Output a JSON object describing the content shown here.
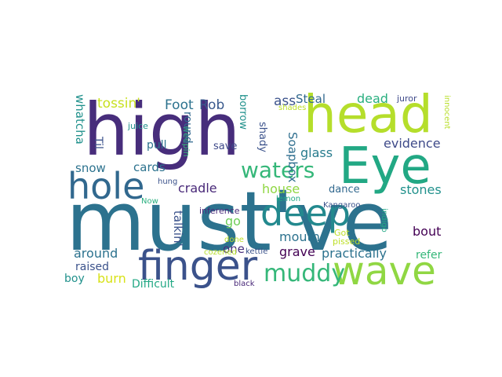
{
  "words": [
    {
      "text": "must've",
      "color": "#2c728e",
      "vertical": false
    },
    {
      "text": "high",
      "color": "#472d7b",
      "vertical": false
    },
    {
      "text": "head",
      "color": "#b5de2b",
      "vertical": false
    },
    {
      "text": "Eye",
      "color": "#22a884",
      "vertical": false
    },
    {
      "text": "finger",
      "color": "#3b528b",
      "vertical": false
    },
    {
      "text": "wave",
      "color": "#90d743",
      "vertical": false
    },
    {
      "text": "hole",
      "color": "#31688e",
      "vertical": false
    },
    {
      "text": "deep",
      "color": "#23898e",
      "vertical": false
    },
    {
      "text": "waters",
      "color": "#35b779",
      "vertical": false
    },
    {
      "text": "muddy",
      "color": "#35b779",
      "vertical": false
    },
    {
      "text": "tossin'",
      "color": "#c8e020",
      "vertical": false
    },
    {
      "text": "Foot",
      "color": "#2c728e",
      "vertical": false
    },
    {
      "text": "Rob",
      "color": "#38588c",
      "vertical": false
    },
    {
      "text": "ass",
      "color": "#3b528b",
      "vertical": false
    },
    {
      "text": "Steal",
      "color": "#31688e",
      "vertical": false
    },
    {
      "text": "dead",
      "color": "#29af7f",
      "vertical": false
    },
    {
      "text": "juror",
      "color": "#3e4989",
      "vertical": false
    },
    {
      "text": "innocent",
      "color": "#b8de29",
      "vertical": true
    },
    {
      "text": "whatcha",
      "color": "#21918c",
      "vertical": true
    },
    {
      "text": "Til",
      "color": "#3b528b",
      "vertical": true
    },
    {
      "text": "juice",
      "color": "#21918c",
      "vertical": false
    },
    {
      "text": "weepin",
      "color": "#35b779",
      "vertical": true
    },
    {
      "text": "round",
      "color": "#31688e",
      "vertical": true
    },
    {
      "text": "borrow",
      "color": "#21918c",
      "vertical": true
    },
    {
      "text": "shady",
      "color": "#3b528b",
      "vertical": true
    },
    {
      "text": "shades",
      "color": "#bddf26",
      "vertical": false
    },
    {
      "text": "evidence",
      "color": "#3e4a89",
      "vertical": false
    },
    {
      "text": "Soapbox",
      "color": "#2e6e8e",
      "vertical": true
    },
    {
      "text": "glass",
      "color": "#287c8e",
      "vertical": false
    },
    {
      "text": "pull",
      "color": "#2c728e",
      "vertical": false
    },
    {
      "text": "save",
      "color": "#3e4989",
      "vertical": false
    },
    {
      "text": "snow",
      "color": "#2c728e",
      "vertical": false
    },
    {
      "text": "cards",
      "color": "#2c728e",
      "vertical": false
    },
    {
      "text": "hung",
      "color": "#3b528b",
      "vertical": false
    },
    {
      "text": "talkin'",
      "color": "#3b528b",
      "vertical": true
    },
    {
      "text": "cradle",
      "color": "#482878",
      "vertical": false
    },
    {
      "text": "house",
      "color": "#90d743",
      "vertical": false
    },
    {
      "text": "dance",
      "color": "#31688e",
      "vertical": false
    },
    {
      "text": "stones",
      "color": "#21918c",
      "vertical": false
    },
    {
      "text": "Now",
      "color": "#29af7f",
      "vertical": false
    },
    {
      "text": "inference",
      "color": "#482878",
      "vertical": false
    },
    {
      "text": "go",
      "color": "#6ece58",
      "vertical": false
    },
    {
      "text": "lemon",
      "color": "#22a884",
      "vertical": false
    },
    {
      "text": "Kangaroo",
      "color": "#3b528b",
      "vertical": false
    },
    {
      "text": "bout",
      "color": "#440154",
      "vertical": false
    },
    {
      "text": "mouth",
      "color": "#2c728e",
      "vertical": false
    },
    {
      "text": "indigo",
      "color": "#22a884",
      "vertical": true
    },
    {
      "text": "Got",
      "color": "#bddf26",
      "vertical": false
    },
    {
      "text": "pissed",
      "color": "#bddf26",
      "vertical": false
    },
    {
      "text": "one",
      "color": "#472d7b",
      "vertical": false
    },
    {
      "text": "done",
      "color": "#bddf26",
      "vertical": false
    },
    {
      "text": "kettle",
      "color": "#3b528b",
      "vertical": false
    },
    {
      "text": "grave",
      "color": "#440154",
      "vertical": false
    },
    {
      "text": "practically",
      "color": "#2c728e",
      "vertical": false
    },
    {
      "text": "refer",
      "color": "#35b779",
      "vertical": false
    },
    {
      "text": "around",
      "color": "#2c728e",
      "vertical": false
    },
    {
      "text": "raised",
      "color": "#3b528b",
      "vertical": false
    },
    {
      "text": "cozened",
      "color": "#b5de2b",
      "vertical": false
    },
    {
      "text": "burn",
      "color": "#d8e219",
      "vertical": false
    },
    {
      "text": "boy",
      "color": "#21918c",
      "vertical": false
    },
    {
      "text": "Difficult",
      "color": "#22a884",
      "vertical": false
    },
    {
      "text": "black",
      "color": "#482878",
      "vertical": false
    }
  ]
}
